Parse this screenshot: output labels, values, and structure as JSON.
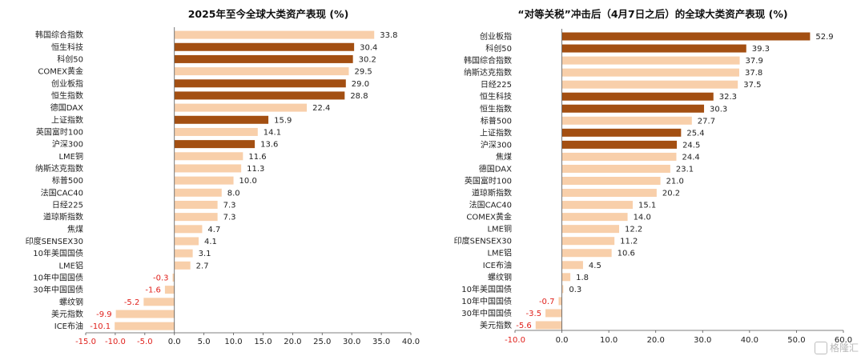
{
  "colors": {
    "dark": "#a34f12",
    "light": "#f8cfaa",
    "negative_label": "#e0211c",
    "axis": "#555555"
  },
  "watermark": "格隆汇",
  "chart_data": [
    {
      "type": "bar",
      "orientation": "horizontal",
      "title": "2025年至今全球大类资产表现 (%)",
      "xlim": [
        -15,
        40
      ],
      "ticks": [
        "-15.0",
        "-10.0",
        "-5.0",
        "0.0",
        "5.0",
        "10.0",
        "15.0",
        "20.0",
        "25.0",
        "30.0",
        "35.0",
        "40.0"
      ],
      "tick_values": [
        -15,
        -10,
        -5,
        0,
        5,
        10,
        15,
        20,
        25,
        30,
        35,
        40
      ],
      "negative_tick_color": "red",
      "categories": [
        "韩国综合指数",
        "恒生科技",
        "科创50",
        "COMEX黄金",
        "创业板指",
        "恒生指数",
        "德国DAX",
        "上证指数",
        "英国富时100",
        "沪深300",
        "LME铜",
        "纳斯达克指数",
        "标普500",
        "法国CAC40",
        "日经225",
        "道琼斯指数",
        "焦煤",
        "印度SENSEX30",
        "10年美国国债",
        "LME铝",
        "10年中国国债",
        "30年中国国债",
        "螺纹钢",
        "美元指数",
        "ICE布油"
      ],
      "values": [
        33.8,
        30.4,
        30.2,
        29.5,
        29.0,
        28.8,
        22.4,
        15.9,
        14.1,
        13.6,
        11.6,
        11.3,
        10.0,
        8.0,
        7.3,
        7.3,
        4.7,
        4.1,
        3.1,
        2.7,
        -0.3,
        -1.6,
        -5.2,
        -9.9,
        -10.1
      ],
      "labels": [
        "33.8",
        "30.4",
        "30.2",
        "29.5",
        "29.0",
        "28.8",
        "22.4",
        "15.9",
        "14.1",
        "13.6",
        "11.6",
        "11.3",
        "10.0",
        "8.0",
        "7.3",
        "7.3",
        "4.7",
        "4.1",
        "3.1",
        "2.7",
        "-0.3",
        "-1.6",
        "-5.2",
        "-9.9",
        "-10.1"
      ],
      "highlight": [
        false,
        true,
        true,
        false,
        true,
        true,
        false,
        true,
        false,
        true,
        false,
        false,
        false,
        false,
        false,
        false,
        false,
        false,
        false,
        false,
        false,
        false,
        false,
        false,
        false
      ]
    },
    {
      "type": "bar",
      "orientation": "horizontal",
      "title": "“对等关税”冲击后（4月7日之后）的全球大类资产表现 (%)",
      "xlim": [
        -10,
        60
      ],
      "ticks": [
        "-10.0",
        "0.0",
        "10.0",
        "20.0",
        "30.0",
        "40.0",
        "50.0",
        "60.0"
      ],
      "tick_values": [
        -10,
        0,
        10,
        20,
        30,
        40,
        50,
        60
      ],
      "negative_tick_color": "red",
      "categories": [
        "创业板指",
        "科创50",
        "韩国综合指数",
        "纳斯达克指数",
        "日经225",
        "恒生科技",
        "恒生指数",
        "标普500",
        "上证指数",
        "沪深300",
        "焦煤",
        "德国DAX",
        "英国富时100",
        "道琼斯指数",
        "法国CAC40",
        "COMEX黄金",
        "LME铜",
        "印度SENSEX30",
        "LME铝",
        "ICE布油",
        "螺纹钢",
        "10年美国国债",
        "10年中国国债",
        "30年中国国债",
        "美元指数"
      ],
      "values": [
        52.9,
        39.3,
        37.9,
        37.8,
        37.5,
        32.3,
        30.3,
        27.7,
        25.4,
        24.5,
        24.4,
        23.1,
        21.0,
        20.2,
        15.1,
        14.0,
        12.2,
        11.2,
        10.6,
        4.5,
        1.8,
        0.3,
        -0.7,
        -3.5,
        -5.6
      ],
      "labels": [
        "52.9",
        "39.3",
        "37.9",
        "37.8",
        "37.5",
        "32.3",
        "30.3",
        "27.7",
        "25.4",
        "24.5",
        "24.4",
        "23.1",
        "21.0",
        "20.2",
        "15.1",
        "14.0",
        "12.2",
        "11.2",
        "10.6",
        "4.5",
        "1.8",
        "0.3",
        "-0.7",
        "-3.5",
        "-5.6"
      ],
      "highlight": [
        true,
        true,
        false,
        false,
        false,
        true,
        true,
        false,
        true,
        true,
        false,
        false,
        false,
        false,
        false,
        false,
        false,
        false,
        false,
        false,
        false,
        false,
        false,
        false,
        false
      ]
    }
  ]
}
